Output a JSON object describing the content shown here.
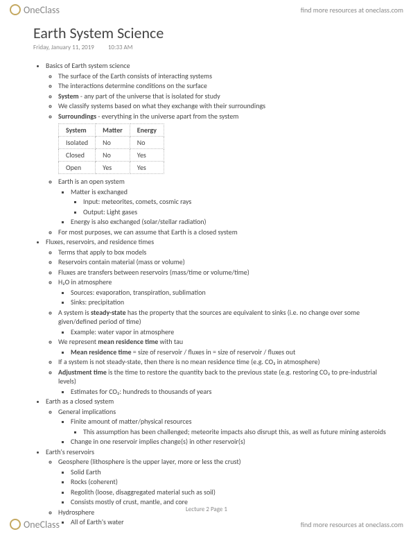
{
  "brand": {
    "name": "OneClass",
    "tagline": "find more resources at oneclass.com"
  },
  "title": "Earth System Science",
  "date": "Friday, January 11, 2019",
  "time": "10:33 AM",
  "footer": "Lecture 2 Page 1",
  "table": {
    "headers": [
      "System",
      "Matter",
      "Energy"
    ],
    "rows": [
      [
        "Isolated",
        "No",
        "No"
      ],
      [
        "Closed",
        "No",
        "Yes"
      ],
      [
        "Open",
        "Yes",
        "Yes"
      ]
    ]
  },
  "s1": {
    "h": "Basics of Earth system science",
    "i1": "The surface of the Earth consists of interacting systems",
    "i2": "The interactions determine conditions on the surface",
    "i3a": "System",
    "i3b": " - any part of the universe that is isolated for study",
    "i4": "We classify systems based on what they exchange with their surroundings",
    "i5a": "Surroundings",
    "i5b": " - everything in the universe apart from the system",
    "i6": "Earth is an open system",
    "i6a": "Matter is exchanged",
    "i6a1": "Input: meteorites, comets, cosmic rays",
    "i6a2": "Output: Light gases",
    "i6b": "Energy is also exchanged (solar/stellar radiation)",
    "i7": "For most purposes, we can assume that Earth is a closed system"
  },
  "s2": {
    "h": "Fluxes, reservoirs, and residence times",
    "i1": "Terms that apply to box models",
    "i2": "Reservoirs contain material (mass or volume)",
    "i3": "Fluxes are transfers between reservoirs (mass/time or volume/time)",
    "i4": "H₂O in atmosphere",
    "i4a": "Sources: evaporation, transpiration, sublimation",
    "i4b": "Sinks: precipitation",
    "i5a": "A system is ",
    "i5b": "steady-state",
    "i5c": " has the property that the sources are equivalent to sinks (i.e. no change over some given/defined period of time)",
    "i5d": "Example: water vapor in atmosphere",
    "i6a": "We represent ",
    "i6b": "mean residence time",
    "i6c": " with tau",
    "i6d": "Mean residence time",
    "i6e": " = size of reservoir / fluxes in = size of reservoir / fluxes out",
    "i7": "If a system is not steady-state, then there is no mean residence time (e.g. CO₂ in atmosphere)",
    "i8a": "Adjustment time",
    "i8b": " is the time to restore the quantity back to the previous state (e.g. restoring CO₂ to pre-industrial levels)",
    "i8c": "Estimates for CO₂: hundreds to thousands of years"
  },
  "s3": {
    "h": "Earth as a closed system",
    "i1": "General implications",
    "i1a": "Finite amount of matter/physical resources",
    "i1a1": "This assumption has been challenged; meteorite impacts also disrupt this, as well as future mining asteroids",
    "i1b": "Change in one reservoir implies change(s) in other reservoir(s)"
  },
  "s4": {
    "h": "Earth's reservoirs",
    "i1": "Geosphere (lithosphere is the upper layer, more or less the crust)",
    "i1a": "Solid Earth",
    "i1b": "Rocks (coherent)",
    "i1c": "Regolith (loose, disaggregated material such as soil)",
    "i1d": "Consists mostly of crust, mantle, and core",
    "i2": "Hydrosphere",
    "i2a": "All of Earth's water"
  }
}
